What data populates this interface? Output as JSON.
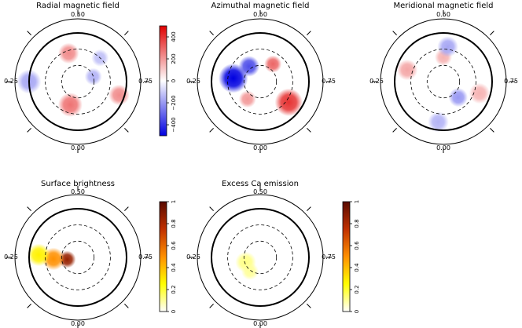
{
  "chart_data": [
    {
      "type": "polar-map",
      "title": "Radial magnetic field",
      "phase_labels": [
        "0.50",
        "0.25",
        "0.75",
        "0.00"
      ],
      "colorbar": {
        "range": [
          -500,
          500
        ],
        "ticks": [
          "400",
          "200",
          "0",
          "−200",
          "−400"
        ],
        "colors": [
          "#e00000",
          "#ffffff",
          "#0000e0"
        ]
      },
      "features": [
        {
          "sign": 1,
          "strength": 0.45,
          "lat": 35,
          "phase": 0.45,
          "size": 12
        },
        {
          "sign": 1,
          "strength": 0.55,
          "lat": 45,
          "phase": 0.05,
          "size": 14
        },
        {
          "sign": 1,
          "strength": 0.45,
          "lat": 10,
          "phase": 0.8,
          "size": 12
        },
        {
          "sign": -1,
          "strength": 0.35,
          "lat": 0,
          "phase": 0.25,
          "size": 14
        },
        {
          "sign": -1,
          "strength": 0.3,
          "lat": 60,
          "phase": 0.7,
          "size": 10
        },
        {
          "sign": -1,
          "strength": 0.25,
          "lat": 30,
          "phase": 0.62,
          "size": 10
        }
      ]
    },
    {
      "type": "polar-map",
      "title": "Azimuthal magnetic field",
      "phase_labels": [
        "0.50",
        "0.25",
        "0.75",
        "0.00"
      ],
      "features": [
        {
          "sign": -1,
          "strength": 1.0,
          "lat": 40,
          "phase": 0.27,
          "size": 17
        },
        {
          "sign": -1,
          "strength": 0.7,
          "lat": 55,
          "phase": 0.4,
          "size": 12
        },
        {
          "sign": 1,
          "strength": 0.8,
          "lat": 25,
          "phase": 0.85,
          "size": 16
        },
        {
          "sign": 1,
          "strength": 0.6,
          "lat": 50,
          "phase": 0.6,
          "size": 10
        },
        {
          "sign": 1,
          "strength": 0.4,
          "lat": 50,
          "phase": 0.1,
          "size": 10
        }
      ]
    },
    {
      "type": "polar-map",
      "title": "Meridional magnetic field",
      "phase_labels": [
        "0.50",
        "0.25",
        "0.75",
        "0.00"
      ],
      "features": [
        {
          "sign": 1,
          "strength": 0.35,
          "lat": 20,
          "phase": 0.3,
          "size": 12
        },
        {
          "sign": 1,
          "strength": 0.3,
          "lat": 45,
          "phase": 0.5,
          "size": 10
        },
        {
          "sign": 1,
          "strength": 0.3,
          "lat": 20,
          "phase": 0.8,
          "size": 12
        },
        {
          "sign": -1,
          "strength": 0.4,
          "lat": 50,
          "phase": 0.88,
          "size": 11
        },
        {
          "sign": -1,
          "strength": 0.35,
          "lat": 25,
          "phase": 0.52,
          "size": 12
        },
        {
          "sign": -1,
          "strength": 0.3,
          "lat": 15,
          "phase": 0.02,
          "size": 12
        }
      ]
    },
    {
      "type": "polar-map",
      "title": "Surface brightness",
      "phase_labels": [
        "0.50",
        "0.25",
        "0.75",
        "0.00"
      ],
      "colorbar": {
        "range": [
          0,
          1
        ],
        "ticks": [
          "1",
          "0.8",
          "0.6",
          "0.4",
          "0.2",
          "0"
        ],
        "colors": [
          "#ffffff",
          "#ffff00",
          "#ff9000",
          "#c03000",
          "#5a0a00"
        ]
      },
      "features": [
        {
          "value": 0.85,
          "lat": 70,
          "phase": 0.22,
          "size": 10
        },
        {
          "value": 0.5,
          "lat": 45,
          "phase": 0.24,
          "size": 13
        },
        {
          "value": 0.28,
          "lat": 18,
          "phase": 0.26,
          "size": 13
        }
      ]
    },
    {
      "type": "polar-map",
      "title": "Excess Ca emission",
      "phase_labels": [
        "0.50",
        "0.25",
        "0.75",
        "0.00"
      ],
      "colorbar": {
        "range": [
          0,
          1
        ],
        "ticks": [
          "1",
          "0.8",
          "0.6",
          "0.4",
          "0.2",
          "0"
        ],
        "colors": [
          "#ffffff",
          "#ffff00",
          "#ff9000",
          "#c03000",
          "#5a0a00"
        ]
      },
      "features": [
        {
          "value": 0.12,
          "lat": 62,
          "phase": 0.2,
          "size": 12
        },
        {
          "value": 0.1,
          "lat": 58,
          "phase": 0.1,
          "size": 10
        }
      ]
    }
  ]
}
